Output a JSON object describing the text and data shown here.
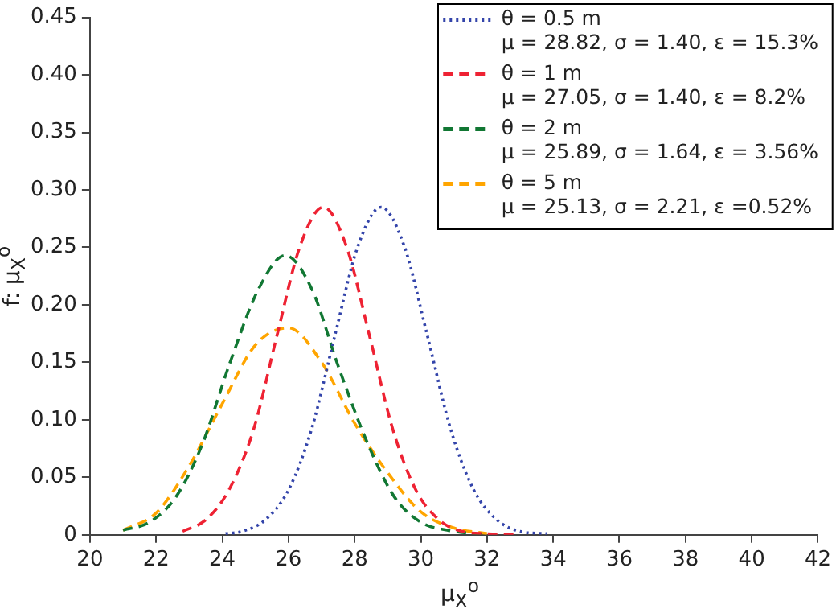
{
  "chart_data": {
    "type": "line",
    "xlabel": "μ$_{X}$$^{o}$",
    "ylabel": "f: μ$_{X}$$^{o}$",
    "xlim": [
      20,
      42
    ],
    "xticks": [
      20,
      22,
      24,
      26,
      28,
      30,
      32,
      34,
      36,
      38,
      40,
      42
    ],
    "ylim": [
      0,
      0.45
    ],
    "yticks": [
      0,
      {
        "value": 0.05,
        "label": "0.05"
      },
      {
        "value": 0.1,
        "label": "0.10"
      },
      {
        "value": 0.15,
        "label": "0.15"
      },
      {
        "value": 0.2,
        "label": "0.20"
      },
      {
        "value": 0.25,
        "label": "0.25"
      },
      {
        "value": 0.3,
        "label": "0.30"
      },
      {
        "value": 0.35,
        "label": "0.35"
      },
      {
        "value": 0.4,
        "label": "0.40"
      },
      {
        "value": 0.45,
        "label": "0.45"
      }
    ],
    "grid": false,
    "legend": "top right",
    "marker": "none",
    "series": [
      {
        "name": "θ = 0.5 m\nμ = 28.82, σ = 1.40, ε = 15.3%",
        "color": "#3344aa",
        "line_style": "dotted",
        "x": [
          24.1,
          24.6,
          25.3,
          26.0,
          26.7,
          27.4,
          28.1,
          28.8,
          29.5,
          30.2,
          30.9,
          31.6,
          32.3,
          33.0,
          33.8
        ],
        "values": [
          0.001,
          0.003,
          0.013,
          0.039,
          0.092,
          0.173,
          0.251,
          0.285,
          0.251,
          0.173,
          0.092,
          0.039,
          0.013,
          0.003,
          0.001
        ]
      },
      {
        "name": "θ = 1 m\nμ = 27.05, σ = 1.40, ε = 8.2%",
        "color": "#ee2233",
        "line_style": "dashed",
        "x": [
          22.8,
          23.5,
          24.2,
          24.95,
          25.65,
          26.35,
          27.05,
          27.75,
          28.45,
          29.15,
          29.85,
          30.55,
          31.25,
          32.0,
          32.8
        ],
        "values": [
          0.003,
          0.013,
          0.039,
          0.092,
          0.173,
          0.251,
          0.285,
          0.251,
          0.173,
          0.092,
          0.039,
          0.013,
          0.003,
          0.001,
          0.0
        ]
      },
      {
        "name": "θ = 2 m\nμ = 25.89, σ = 1.64, ε = 3.56%",
        "color": "#117733",
        "line_style": "dashed",
        "x": [
          21.0,
          21.8,
          22.6,
          23.4,
          24.2,
          25.1,
          25.9,
          26.7,
          27.5,
          28.4,
          29.2,
          30.0,
          30.8,
          31.6,
          32.0
        ],
        "values": [
          0.004,
          0.011,
          0.033,
          0.079,
          0.147,
          0.214,
          0.243,
          0.214,
          0.147,
          0.079,
          0.033,
          0.011,
          0.004,
          0.001,
          0.0
        ]
      },
      {
        "name": "θ = 5 m\nμ = 25.13, σ = 2.21, ε =0.52%",
        "color": "#ffa500",
        "line_style": "dashed",
        "x": [
          21,
          22,
          23,
          24,
          25,
          26,
          27,
          28,
          29,
          30,
          31,
          32
        ],
        "values": [
          0.004,
          0.019,
          0.06,
          0.114,
          0.165,
          0.18,
          0.15,
          0.097,
          0.054,
          0.02,
          0.006,
          0.001
        ]
      }
    ]
  }
}
